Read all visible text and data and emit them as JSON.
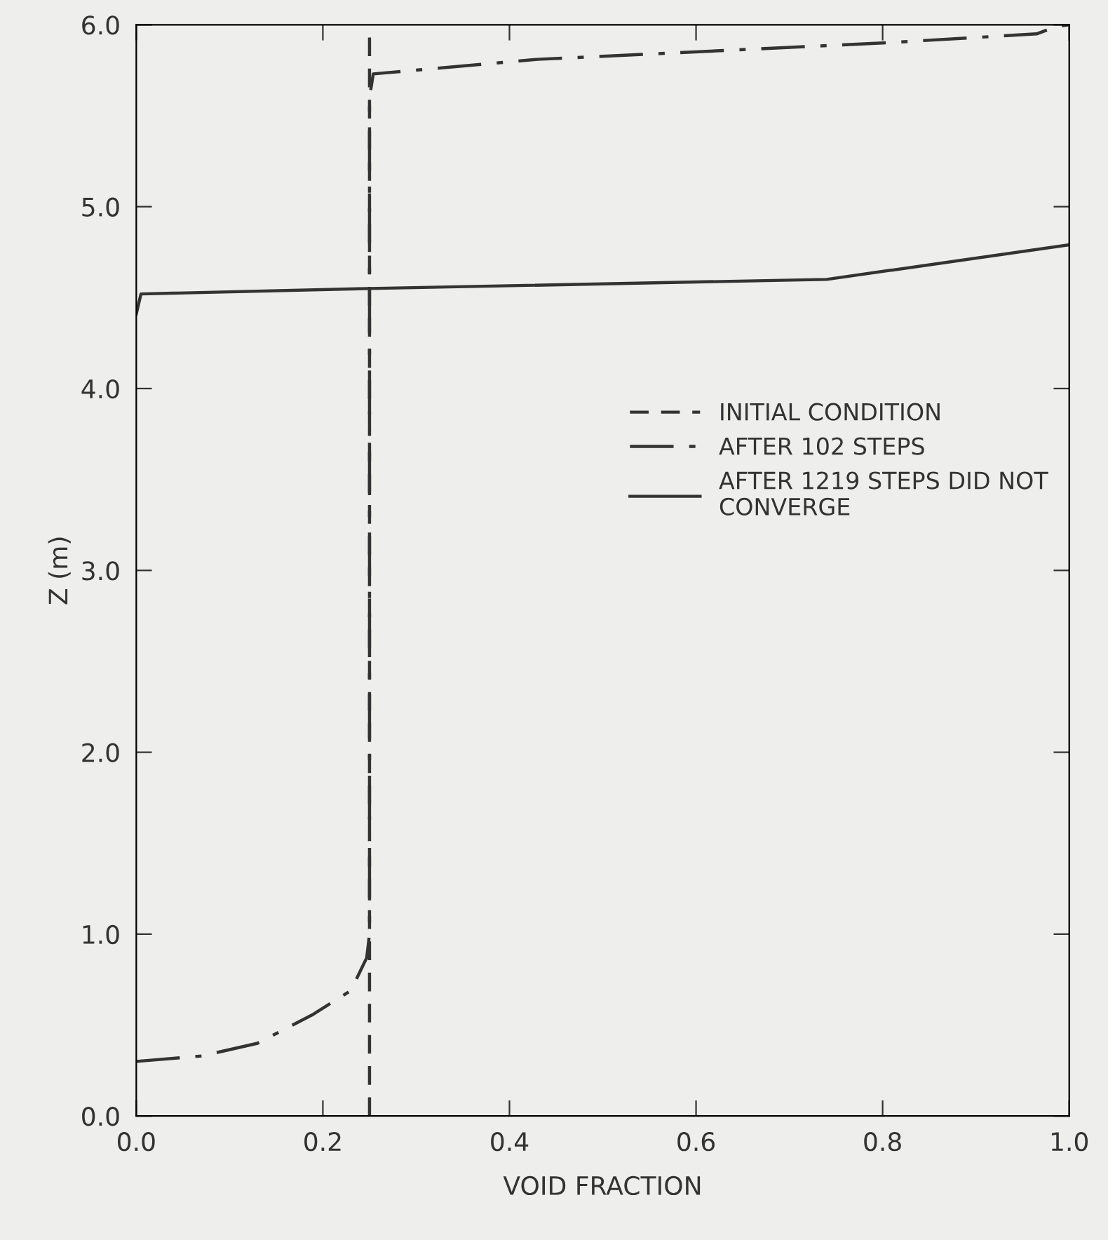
{
  "chart_data": {
    "type": "line",
    "xlabel": "VOID FRACTION",
    "ylabel": "Z (m)",
    "xlim": [
      0.0,
      1.0
    ],
    "ylim": [
      0.0,
      6.0
    ],
    "xticks": [
      {
        "value": 0.0,
        "label": "0.0"
      },
      {
        "value": 0.2,
        "label": "0.2"
      },
      {
        "value": 0.4,
        "label": "0.4"
      },
      {
        "value": 0.6,
        "label": "0.6"
      },
      {
        "value": 0.8,
        "label": "0.8"
      },
      {
        "value": 1.0,
        "label": "1.0"
      }
    ],
    "yticks": [
      {
        "value": 0.0,
        "label": "0.0"
      },
      {
        "value": 1.0,
        "label": "1.0"
      },
      {
        "value": 2.0,
        "label": "2.0"
      },
      {
        "value": 3.0,
        "label": "3.0"
      },
      {
        "value": 4.0,
        "label": "4.0"
      },
      {
        "value": 5.0,
        "label": "5.0"
      },
      {
        "value": 6.0,
        "label": "6.0"
      }
    ],
    "grid": false,
    "legend": "right",
    "marker": "none",
    "series": [
      {
        "name": "INITIAL CONDITION",
        "color": "#333333",
        "line_style": "dashed",
        "x": [
          0.25,
          0.25
        ],
        "values": [
          0.0,
          6.0
        ]
      },
      {
        "name": "AFTER 102 STEPS",
        "color": "#333333",
        "line_style": "dashdot",
        "x": [
          0.0,
          0.07,
          0.13,
          0.19,
          0.23,
          0.247,
          0.25,
          0.25,
          0.254,
          0.43,
          0.8,
          0.965,
          0.986,
          1.0
        ],
        "values": [
          0.3,
          0.33,
          0.4,
          0.56,
          0.69,
          0.87,
          1.0,
          5.6,
          5.73,
          5.81,
          5.9,
          5.95,
          5.99,
          6.0
        ]
      },
      {
        "name": "AFTER 1219 STEPS DID NOT\nCONVERGE",
        "color": "#333333",
        "line_style": "solid",
        "x": [
          0.0,
          0.005,
          0.25,
          0.74,
          1.0
        ],
        "values": [
          4.41,
          4.52,
          4.55,
          4.6,
          4.79
        ]
      }
    ]
  }
}
